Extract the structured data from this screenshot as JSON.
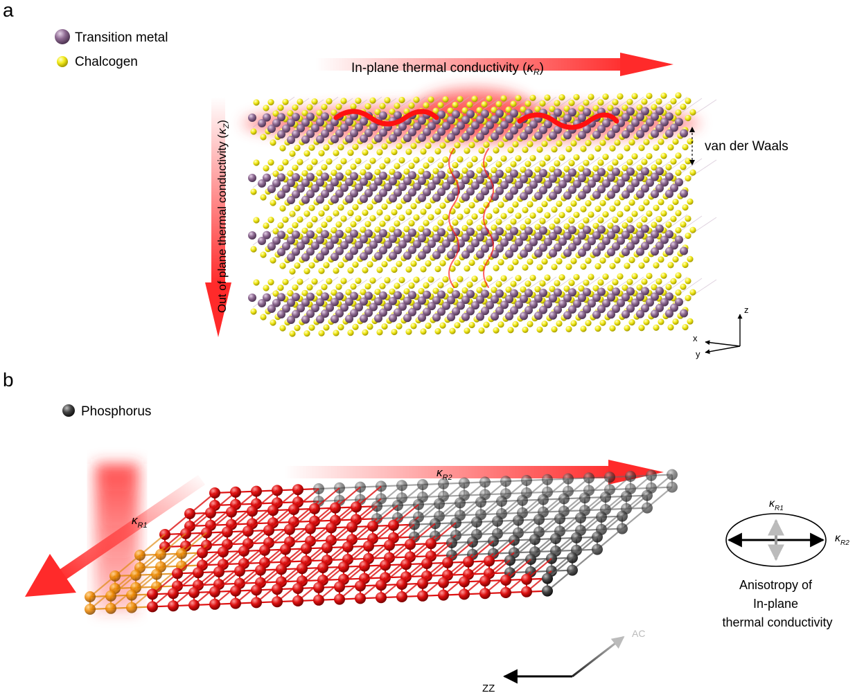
{
  "panel_a": {
    "label": "a",
    "legend": [
      {
        "name": "Transition metal",
        "color": "#8e6a92"
      },
      {
        "name": "Chalcogen",
        "color": "#f2ea1a"
      }
    ],
    "in_plane_label": "In-plane thermal conductivity (",
    "in_plane_symbol": "κ",
    "in_plane_sub": "R",
    "in_plane_close": ")",
    "out_plane_label": "Out of plane thermal conductivity (",
    "out_plane_symbol": "κ",
    "out_plane_sub": "Z",
    "out_plane_close": ")",
    "vdw_label": "van der Waals",
    "axes": {
      "z": "z",
      "x": "x",
      "y": "y"
    }
  },
  "panel_b": {
    "label": "b",
    "legend": {
      "name": "Phosphorus",
      "color": "#333333"
    },
    "kr1_symbol": "κ",
    "kr1_sub": "R1",
    "kr2_symbol": "κ",
    "kr2_sub": "R2",
    "ac_label": "AC",
    "zz_label": "ZZ",
    "ellipse": {
      "kr1_symbol": "κ",
      "kr1_sub": "R1",
      "kr2_symbol": "κ",
      "kr2_sub": "R2"
    },
    "caption_lines": [
      "Anisotropy of",
      "In-plane",
      "thermal conductivity"
    ]
  },
  "colors": {
    "arrow": "#ff2a2a",
    "metal": "#8e6a92",
    "chalcogen": "#f2ea1a",
    "phosphorus_dark": "#333333",
    "phosphorus_red": "#dd1111",
    "phosphorus_orange": "#ee8800"
  }
}
